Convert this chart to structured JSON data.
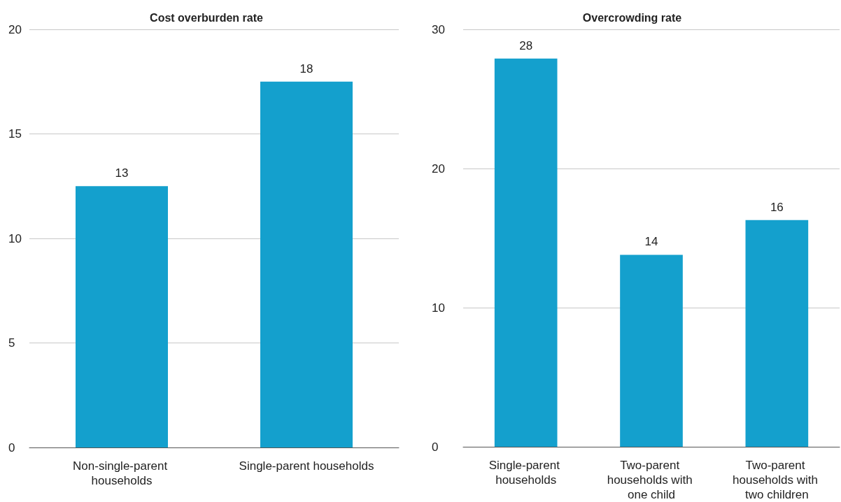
{
  "chart_data": [
    {
      "type": "bar",
      "title": "Cost overburden rate",
      "categories": [
        "Non-single-parent households",
        "Single-parent households"
      ],
      "values": [
        12.5,
        17.5
      ],
      "value_labels": [
        "13",
        "18"
      ],
      "color": "#14a0cd",
      "ylim": [
        0,
        20
      ],
      "yticks": [
        0,
        5,
        10,
        15,
        20
      ],
      "grid": "y"
    },
    {
      "type": "bar",
      "title": "Overcrowding rate",
      "categories": [
        "Single-parent households",
        "Two-parent households with one child",
        "Two-parent households with two children"
      ],
      "values": [
        27.9,
        13.8,
        16.3
      ],
      "value_labels": [
        "28",
        "14",
        "16"
      ],
      "color": "#14a0cd",
      "ylim": [
        0,
        30
      ],
      "yticks": [
        0,
        10,
        20,
        30
      ],
      "grid": "y"
    }
  ]
}
